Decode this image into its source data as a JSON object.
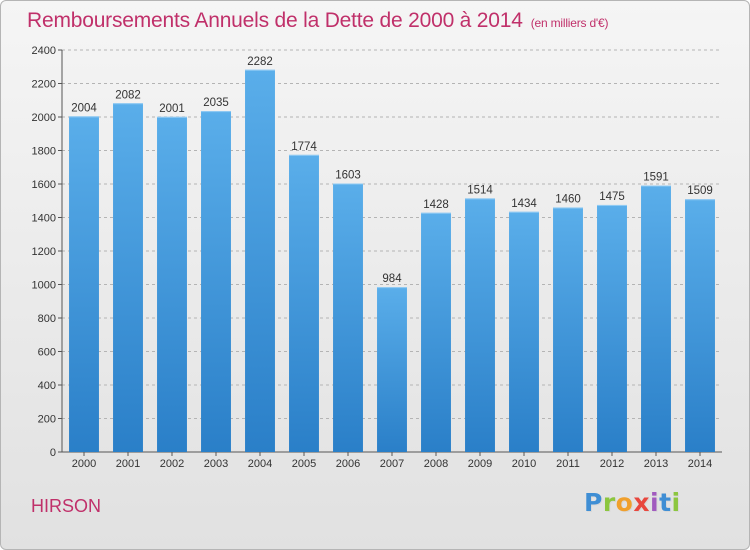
{
  "header": {
    "title": "Remboursements Annuels de la Dette de 2000 à 2014",
    "unit": "(en milliers d'€)"
  },
  "footer": {
    "city": "HIRSON",
    "logo": [
      "P",
      "r",
      "o",
      "x",
      "i",
      "t",
      "i"
    ]
  },
  "colors": {
    "title": "#c0306a",
    "bar_light": "#5aaeea",
    "bar_dark": "#2a7fc8"
  },
  "chart_data": {
    "type": "bar",
    "title": "Remboursements Annuels de la Dette de 2000 à 2014",
    "xlabel": "",
    "ylabel": "",
    "categories": [
      "2000",
      "2001",
      "2002",
      "2003",
      "2004",
      "2005",
      "2006",
      "2007",
      "2008",
      "2009",
      "2010",
      "2011",
      "2012",
      "2013",
      "2014"
    ],
    "values": [
      2004,
      2082,
      2001,
      2035,
      2282,
      1774,
      1603,
      984,
      1428,
      1514,
      1434,
      1460,
      1475,
      1591,
      1509
    ],
    "ylim": [
      0,
      2400
    ],
    "yticks": [
      0,
      200,
      400,
      600,
      800,
      1000,
      1200,
      1400,
      1600,
      1800,
      2000,
      2200,
      2400
    ],
    "grid": true
  }
}
